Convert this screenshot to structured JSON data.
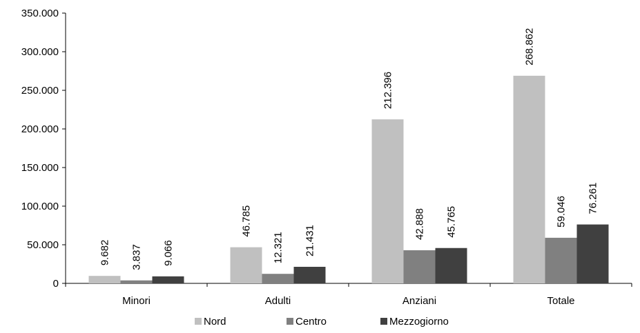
{
  "chart_data": {
    "type": "bar",
    "categories": [
      "Minori",
      "Adulti",
      "Anziani",
      "Totale"
    ],
    "series": [
      {
        "name": "Nord",
        "color": "#c0c0c0",
        "values": [
          9682,
          46785,
          212396,
          268862
        ],
        "labels": [
          "9.682",
          "46.785",
          "212.396",
          "268.862"
        ]
      },
      {
        "name": "Centro",
        "color": "#808080",
        "values": [
          3837,
          12321,
          42888,
          59046
        ],
        "labels": [
          "3.837",
          "12.321",
          "42.888",
          "59.046"
        ]
      },
      {
        "name": "Mezzogiorno",
        "color": "#404040",
        "values": [
          9066,
          21431,
          45765,
          76261
        ],
        "labels": [
          "9.066",
          "21.431",
          "45.765",
          "76.261"
        ]
      }
    ],
    "ylim": [
      0,
      350000
    ],
    "yticks": [
      {
        "value": 0,
        "label": "0"
      },
      {
        "value": 50000,
        "label": "50.000"
      },
      {
        "value": 100000,
        "label": "100.000"
      },
      {
        "value": 150000,
        "label": "150.000"
      },
      {
        "value": 200000,
        "label": "200.000"
      },
      {
        "value": 250000,
        "label": "250.000"
      },
      {
        "value": 300000,
        "label": "300.000"
      },
      {
        "value": 350000,
        "label": "350.000"
      }
    ],
    "grid": false,
    "legend_position": "bottom"
  }
}
